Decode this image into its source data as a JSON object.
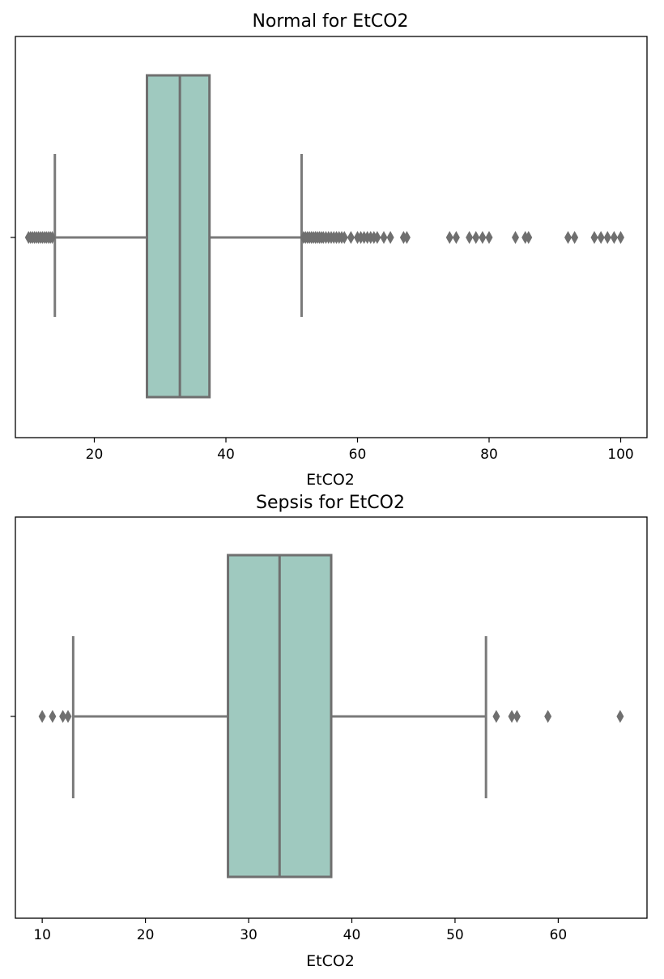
{
  "chart_data": [
    {
      "type": "box",
      "title": "Normal for EtCO2",
      "xlabel": "EtCO2",
      "xticks": [
        20,
        40,
        60,
        80,
        100
      ],
      "xlim": [
        8,
        104
      ],
      "box_color": "#9fc9bf",
      "line_color": "#6f6f6f",
      "stats": {
        "whislo": 14,
        "q1": 28,
        "med": 33,
        "q3": 37.5,
        "whishi": 51.5
      },
      "fliers": [
        10,
        10.3,
        10.6,
        10.9,
        11.2,
        11.5,
        11.8,
        12.1,
        12.4,
        12.7,
        13,
        13.3,
        13.6,
        51.8,
        52.1,
        52.4,
        52.7,
        53,
        53.3,
        53.6,
        53.9,
        54.2,
        54.5,
        54.8,
        55.2,
        55.6,
        56,
        56.4,
        56.8,
        57.2,
        57.6,
        58,
        59,
        60,
        60.5,
        61,
        61.5,
        62,
        62.5,
        63,
        64,
        65,
        67,
        67.5,
        74,
        75,
        77,
        78,
        79,
        80,
        84,
        85.5,
        86,
        92,
        93,
        96,
        97,
        98,
        99,
        100
      ]
    },
    {
      "type": "box",
      "title": "Sepsis for EtCO2",
      "xlabel": "EtCO2",
      "xticks": [
        10,
        20,
        30,
        40,
        50,
        60
      ],
      "xlim": [
        7.4,
        68.6
      ],
      "box_color": "#9fc9bf",
      "line_color": "#6f6f6f",
      "stats": {
        "whislo": 13,
        "q1": 28,
        "med": 33,
        "q3": 38,
        "whishi": 53
      },
      "fliers": [
        10,
        11,
        12,
        12.5,
        54,
        55.5,
        56,
        59,
        66
      ]
    }
  ]
}
